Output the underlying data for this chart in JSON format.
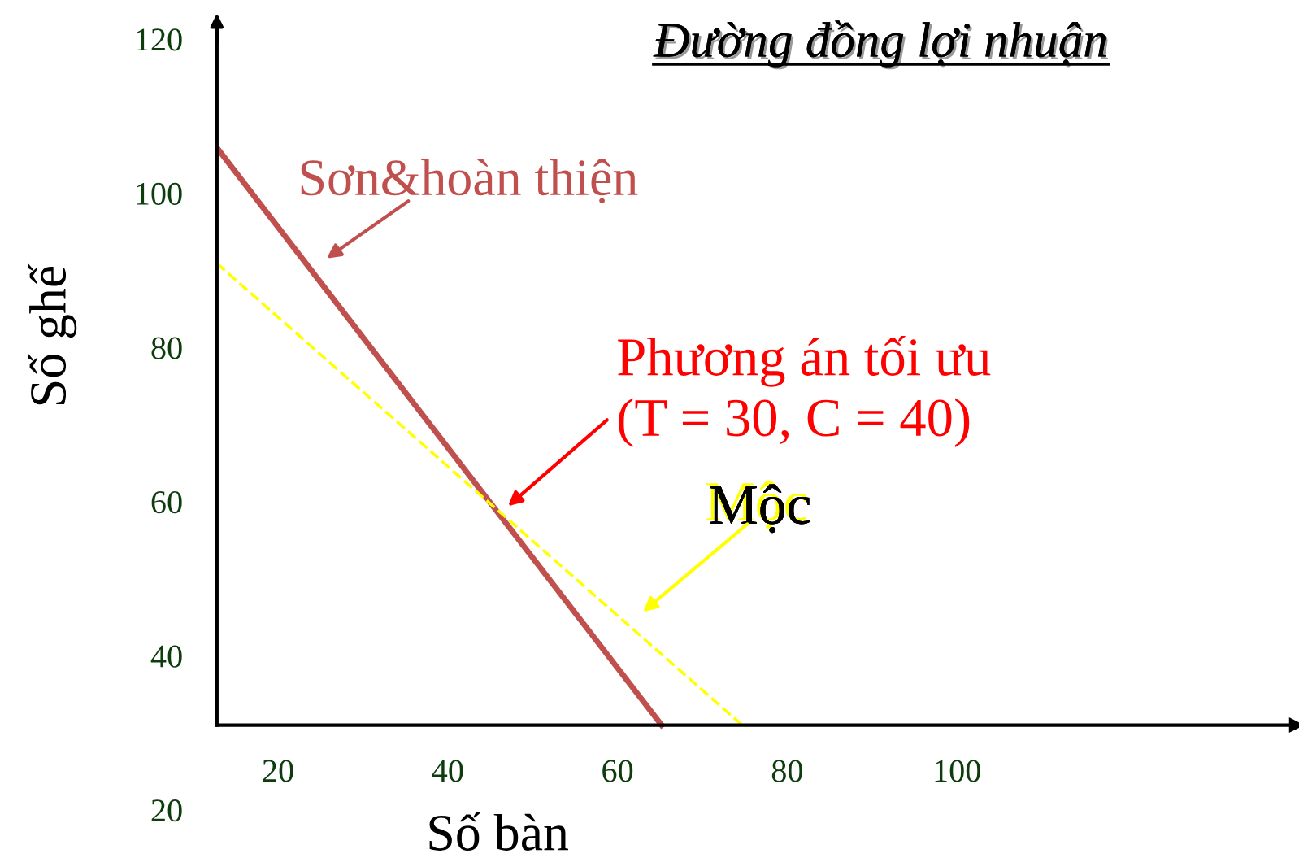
{
  "chart_data": {
    "type": "line",
    "title": "Đường đồng lợi nhuận",
    "xlabel": "Số bàn",
    "ylabel": "Số ghế",
    "xlim": [
      12.8,
      140
    ],
    "ylim": [
      20,
      122.4
    ],
    "xticks": [
      20,
      40,
      60,
      80,
      100
    ],
    "yticks": [
      20,
      40,
      60,
      80,
      100,
      120
    ],
    "grid": false,
    "legend": false,
    "marker": "none",
    "series": [
      {
        "color": "#c0504d",
        "x": [
          12.8,
          65.2
        ],
        "values": [
          105.9,
          31
        ],
        "line_style": "solid"
      },
      {
        "color": "#ffff00",
        "x": [
          12.8,
          74.7
        ],
        "values": [
          90.9,
          31
        ],
        "line_style": "dashed"
      }
    ],
    "annotations": [
      "Sơn&hoàn thiện",
      "Phương án tối ưu\n(T = 30, C = 40)",
      "Mộc"
    ]
  }
}
